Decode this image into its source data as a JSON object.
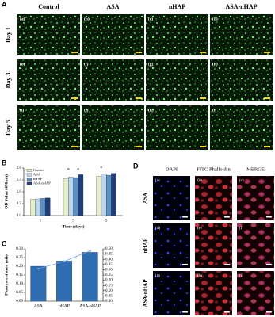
{
  "figure_a": {
    "letter": "A",
    "columns": [
      "Control",
      "ASA",
      "nHAP",
      "ASA-nHAP"
    ],
    "rows": [
      "Day 1",
      "Day 3",
      "Day 5"
    ],
    "labels": [
      "(a)",
      "(b)",
      "(c)",
      "(d)",
      "(e)",
      "(f)",
      "(g)",
      "(h)",
      "(i)",
      "(j)",
      "(k)",
      "(l)"
    ]
  },
  "figure_d": {
    "letter": "D",
    "columns": [
      "DAPI",
      "FITC Phalloidin",
      "MERGE"
    ],
    "rows": [
      "ASA",
      "nHAP",
      "ASA-nHAP"
    ],
    "labels": [
      "(a)",
      "(b)",
      "(c)",
      "(d)",
      "(e)",
      "(f)",
      "(g)",
      "(h)",
      "(i)"
    ]
  },
  "chart_data": [
    {
      "type": "bar",
      "label": "B",
      "y_label": "OD Value (490nm)",
      "x_label": "Time (days)",
      "categories": [
        "1",
        "3",
        "5"
      ],
      "series": [
        {
          "name": "Control",
          "color": "#e6efc9",
          "values": [
            0.68,
            1.55,
            1.65
          ]
        },
        {
          "name": "ASA",
          "color": "#bcd6ee",
          "values": [
            0.7,
            1.62,
            1.75
          ]
        },
        {
          "name": "nHAP",
          "color": "#5b8fc7",
          "values": [
            0.72,
            1.6,
            1.7
          ]
        },
        {
          "name": "ASA-nHAP",
          "color": "#1f3f7a",
          "values": [
            0.74,
            1.72,
            1.78
          ]
        }
      ],
      "annotations": [
        "*",
        "*",
        "*"
      ],
      "ylim": [
        0,
        2.0
      ],
      "yticks": [
        {
          "value": 0,
          "label": "0.0"
        },
        {
          "value": 0.5,
          "label": "0.5"
        },
        {
          "value": 1,
          "label": "1.0"
        },
        {
          "value": 1.5,
          "label": "1.5"
        },
        {
          "value": 2,
          "label": "2.0"
        }
      ]
    },
    {
      "type": "bar",
      "label": "C",
      "y_label": "Fluorescent area ratio",
      "categories": [
        "ASA",
        "nHAP",
        "ASA-nHAP"
      ],
      "series": [
        {
          "color": "#2f6db3",
          "values": [
            0.2,
            0.23,
            0.28
          ]
        },
        {
          "color": "#6f9fe0",
          "values": [
            0.31,
            0.38,
            0.48
          ],
          "axis": "y2",
          "type": "line"
        }
      ],
      "ylim": [
        0,
        0.3
      ],
      "yticks": [
        {
          "value": 0,
          "label": "0.00"
        },
        {
          "value": 0.05,
          "label": "0.05"
        },
        {
          "value": 0.1,
          "label": "0.10"
        },
        {
          "value": 0.15,
          "label": "0.15"
        },
        {
          "value": 0.2,
          "label": "0.20"
        },
        {
          "value": 0.25,
          "label": "0.25"
        },
        {
          "value": 0.3,
          "label": "0.30"
        }
      ],
      "y2lim": [
        0,
        0.5
      ],
      "y2ticks": [
        {
          "value": 0,
          "label": "0.00"
        },
        {
          "value": 0.05,
          "label": "0.05"
        },
        {
          "value": 0.1,
          "label": "0.10"
        },
        {
          "value": 0.15,
          "label": "0.15"
        },
        {
          "value": 0.2,
          "label": "0.20"
        },
        {
          "value": 0.25,
          "label": "0.25"
        },
        {
          "value": 0.3,
          "label": "0.30"
        },
        {
          "value": 0.35,
          "label": "0.35"
        },
        {
          "value": 0.4,
          "label": "0.40"
        },
        {
          "value": 0.45,
          "label": "0.45"
        },
        {
          "value": 0.5,
          "label": "0.50"
        }
      ]
    }
  ]
}
